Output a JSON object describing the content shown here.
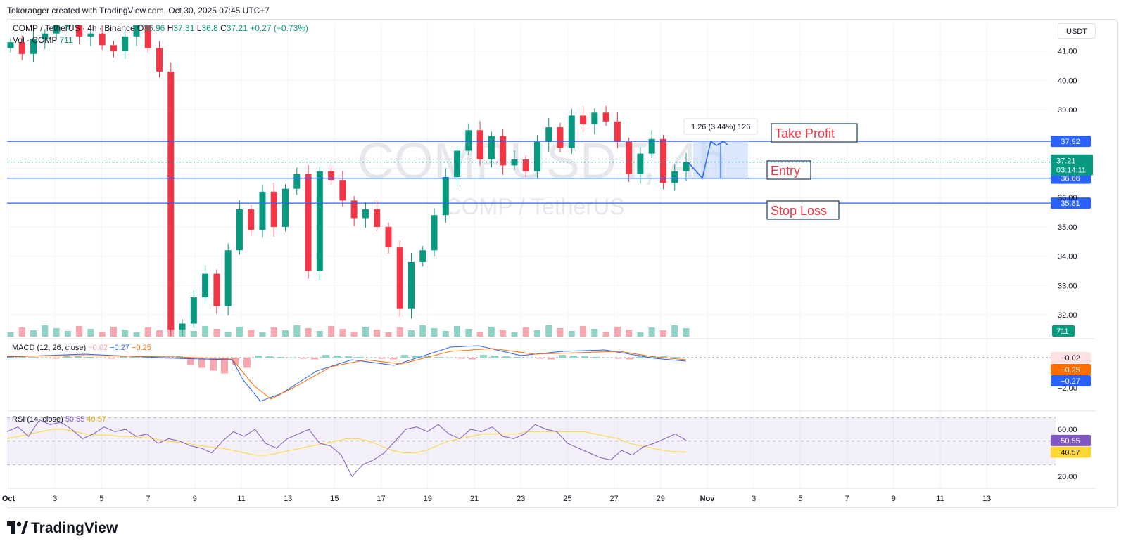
{
  "caption": "Tokoranger created with TradingView.com, Oct 30, 2025 07:45 UTC+7",
  "header": {
    "symbol": "COMP / TetherUS · 4h · Binance",
    "open_label": "O",
    "open": "36.96",
    "high_label": "H",
    "high": "37.31",
    "low_label": "L",
    "low": "36.8",
    "close_label": "C",
    "close": "37.21",
    "change": "+0.27 (+0.73%)",
    "vol_label": "Vol · COMP",
    "vol": "711"
  },
  "currency": "USDT",
  "watermark": {
    "ticker": "COMPUSDT, 4h",
    "name": "COMP / TetherUS"
  },
  "brand": "TradingView",
  "colors": {
    "up": "#089981",
    "down": "#f23645",
    "level_line": "#2962ff",
    "macd": "#2962ff",
    "signal": "#ff6d00",
    "rsi": "#7e57c2",
    "rsi_ma": "#fdd835",
    "annotation": "#f23645"
  },
  "chart_data": [
    {
      "type": "candlestick",
      "title": "COMPUSDT, 4h",
      "ylim": [
        31.2,
        42.3
      ],
      "y_ticks": [
        "41.00",
        "40.00",
        "39.00",
        "38.00",
        "37.00",
        "36.00",
        "35.00",
        "34.00",
        "33.00",
        "32.00"
      ],
      "x_ticks": [
        "Oct",
        "3",
        "5",
        "7",
        "9",
        "11",
        "13",
        "15",
        "17",
        "19",
        "21",
        "23",
        "25",
        "27",
        "29",
        "Nov",
        "3",
        "5",
        "7",
        "9",
        "11",
        "13"
      ],
      "close_path": [
        41.3,
        40.9,
        41.4,
        41.6,
        41.9,
        42.1,
        41.5,
        41.6,
        41.2,
        41.0,
        41.5,
        41.9,
        41.1,
        40.3,
        31.5,
        31.7,
        32.6,
        33.4,
        32.3,
        34.2,
        35.6,
        34.9,
        36.2,
        35.0,
        36.3,
        36.8,
        33.5,
        36.9,
        36.6,
        35.9,
        35.3,
        35.6,
        35.0,
        34.3,
        32.2,
        33.8,
        34.2,
        35.4,
        36.7,
        37.6,
        38.3,
        37.3,
        38.1,
        37.1,
        37.3,
        36.9,
        37.9,
        38.4,
        37.7,
        38.8,
        38.5,
        38.9,
        38.6,
        37.9,
        36.8,
        37.5,
        38.0,
        36.5,
        36.9,
        37.21
      ],
      "series": [
        {
          "name": "Take Profit",
          "value": 37.92
        },
        {
          "name": "Entry",
          "value": 36.66
        },
        {
          "name": "Stop Loss",
          "value": 35.81
        }
      ],
      "last_price": {
        "value": "37.21",
        "countdown": "03:14:11"
      },
      "measure": {
        "label": "1.26 (3.44%) 126",
        "from": 36.66,
        "to": 37.92
      },
      "annotations": [
        "Take Profit",
        "Entry",
        "Stop Loss"
      ]
    },
    {
      "type": "bar",
      "title": "Vol · COMP",
      "last_value": "711"
    },
    {
      "type": "line",
      "title": "MACD (12, 26, close)",
      "values_text": {
        "histogram": "−0.02",
        "macd": "−0.27",
        "signal": "−0.25"
      },
      "y_ticks": [
        "−2.00"
      ],
      "axis_badges": [
        "−0.02",
        "−0.25",
        "−0.27"
      ]
    },
    {
      "type": "line",
      "title": "RSI (14, close)",
      "values_text": {
        "rsi": "50.55",
        "rsi_ma": "40.57"
      },
      "ylim": [
        15,
        75
      ],
      "bands": [
        30,
        70
      ],
      "y_ticks": [
        "60.00",
        "20.00"
      ],
      "axis_badges": [
        "50.55",
        "40.57"
      ]
    }
  ]
}
